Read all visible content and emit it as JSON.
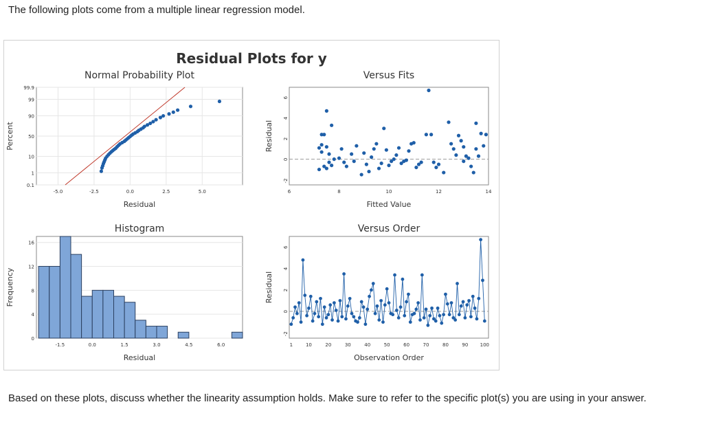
{
  "question": {
    "intro": "The following plots come from a multiple linear regression model.",
    "prompt": "Based on these plots, discuss whether the linearity assumption holds. Make sure to refer to the specific plot(s) you are using in your answer."
  },
  "figure": {
    "title": "Residual Plots for y"
  },
  "colors": {
    "points": "#1f5fa8",
    "bars": "#7fa6d8",
    "fit_line": "#c0392b",
    "reference_line": "#9a9a9a",
    "grid": "#e6e6e6"
  },
  "chart_data": [
    {
      "type": "scatter",
      "title": "Normal Probability Plot",
      "xlabel": "Residual",
      "ylabel": "Percent",
      "xlim": [
        -6.5,
        7.8
      ],
      "x_ticks": [
        "-5.0",
        "-2.5",
        "0.0",
        "2.5",
        "5.0"
      ],
      "x_tick_values": [
        -5,
        -2.5,
        0,
        2.5,
        5
      ],
      "y_ticks": [
        "0.1",
        "1",
        "10",
        "50",
        "90",
        "99",
        "99.9"
      ],
      "y_tick_values": [
        0.1,
        1,
        10,
        50,
        90,
        99,
        99.9
      ],
      "grid": true,
      "fit_line": {
        "from": [
          -4.5,
          0.1
        ],
        "to": [
          3.8,
          99.9
        ]
      },
      "points": [
        [
          -2.0,
          1.3
        ],
        [
          -1.95,
          2.2
        ],
        [
          -1.9,
          3.0
        ],
        [
          -1.85,
          4.1
        ],
        [
          -1.8,
          5.2
        ],
        [
          -1.75,
          6.5
        ],
        [
          -1.7,
          8.0
        ],
        [
          -1.6,
          10
        ],
        [
          -1.5,
          12
        ],
        [
          -1.4,
          14
        ],
        [
          -1.3,
          16
        ],
        [
          -1.2,
          18
        ],
        [
          -1.1,
          20
        ],
        [
          -1.0,
          22
        ],
        [
          -0.9,
          25
        ],
        [
          -0.8,
          28
        ],
        [
          -0.7,
          31
        ],
        [
          -0.55,
          34
        ],
        [
          -0.4,
          37
        ],
        [
          -0.3,
          40
        ],
        [
          -0.2,
          43
        ],
        [
          -0.1,
          46
        ],
        [
          0.0,
          49
        ],
        [
          0.1,
          52
        ],
        [
          0.2,
          55
        ],
        [
          0.35,
          58
        ],
        [
          0.5,
          61
        ],
        [
          0.6,
          64
        ],
        [
          0.75,
          67
        ],
        [
          0.9,
          70
        ],
        [
          1.0,
          73
        ],
        [
          1.2,
          76
        ],
        [
          1.4,
          79
        ],
        [
          1.6,
          82
        ],
        [
          1.8,
          85
        ],
        [
          2.1,
          88
        ],
        [
          2.3,
          90
        ],
        [
          2.7,
          92
        ],
        [
          3.0,
          93.5
        ],
        [
          3.3,
          95
        ],
        [
          4.2,
          97
        ],
        [
          6.2,
          98.6
        ]
      ]
    },
    {
      "type": "scatter",
      "title": "Versus Fits",
      "xlabel": "Fitted Value",
      "ylabel": "Residual",
      "xlim": [
        6,
        14
      ],
      "ylim": [
        -2.5,
        7
      ],
      "x_ticks": [
        "6",
        "8",
        "10",
        "12",
        "14"
      ],
      "x_tick_values": [
        6,
        8,
        10,
        12,
        14
      ],
      "y_ticks": [
        "-2",
        "0",
        "2",
        "4",
        "6"
      ],
      "y_tick_values": [
        -2,
        0,
        2,
        4,
        6
      ],
      "grid": false,
      "reference_line_y": 0,
      "points": [
        [
          7.5,
          4.7
        ],
        [
          7.7,
          3.3
        ],
        [
          7.3,
          2.4
        ],
        [
          7.4,
          2.4
        ],
        [
          7.3,
          1.4
        ],
        [
          7.2,
          1.1
        ],
        [
          7.5,
          1.2
        ],
        [
          7.3,
          0.7
        ],
        [
          7.6,
          0.5
        ],
        [
          7.7,
          -0.6
        ],
        [
          7.4,
          -0.7
        ],
        [
          7.5,
          -0.9
        ],
        [
          7.2,
          -1.0
        ],
        [
          7.6,
          -0.3
        ],
        [
          7.8,
          0.0
        ],
        [
          8.0,
          0.1
        ],
        [
          8.1,
          1.0
        ],
        [
          8.2,
          -0.3
        ],
        [
          8.3,
          -0.7
        ],
        [
          8.5,
          0.5
        ],
        [
          8.6,
          -0.2
        ],
        [
          8.7,
          1.3
        ],
        [
          8.9,
          -1.5
        ],
        [
          9.0,
          0.6
        ],
        [
          9.1,
          -0.5
        ],
        [
          9.2,
          -1.2
        ],
        [
          9.3,
          0.2
        ],
        [
          9.4,
          1.0
        ],
        [
          9.5,
          1.5
        ],
        [
          9.6,
          -0.9
        ],
        [
          9.7,
          -0.4
        ],
        [
          9.8,
          3.0
        ],
        [
          9.9,
          0.9
        ],
        [
          10.0,
          -0.6
        ],
        [
          10.1,
          -0.2
        ],
        [
          10.2,
          0.0
        ],
        [
          10.3,
          0.4
        ],
        [
          10.4,
          1.1
        ],
        [
          10.5,
          -0.4
        ],
        [
          10.6,
          -0.2
        ],
        [
          10.7,
          -0.1
        ],
        [
          10.8,
          0.8
        ],
        [
          10.9,
          1.5
        ],
        [
          11.0,
          1.6
        ],
        [
          11.1,
          -0.8
        ],
        [
          11.2,
          -0.5
        ],
        [
          11.3,
          -0.3
        ],
        [
          11.5,
          2.4
        ],
        [
          11.6,
          6.7
        ],
        [
          11.7,
          2.4
        ],
        [
          11.8,
          -0.3
        ],
        [
          11.9,
          -0.8
        ],
        [
          12.0,
          -0.5
        ],
        [
          12.2,
          -1.3
        ],
        [
          12.4,
          3.6
        ],
        [
          12.5,
          1.5
        ],
        [
          12.6,
          1.0
        ],
        [
          12.7,
          0.4
        ],
        [
          12.8,
          2.3
        ],
        [
          12.9,
          1.8
        ],
        [
          13.0,
          1.2
        ],
        [
          13.0,
          -0.2
        ],
        [
          13.1,
          0.3
        ],
        [
          13.2,
          0.1
        ],
        [
          13.3,
          -0.7
        ],
        [
          13.4,
          -1.3
        ],
        [
          13.5,
          1.0
        ],
        [
          13.6,
          0.3
        ],
        [
          13.7,
          2.5
        ],
        [
          13.8,
          1.3
        ],
        [
          13.9,
          2.4
        ],
        [
          13.5,
          3.5
        ]
      ]
    },
    {
      "type": "bar",
      "title": "Histogram",
      "xlabel": "Residual",
      "ylabel": "Frequency",
      "xlim": [
        -2.6,
        7.0
      ],
      "ylim": [
        0,
        17
      ],
      "x_ticks": [
        "-1.5",
        "0.0",
        "1.5",
        "3.0",
        "4.5",
        "6.0"
      ],
      "x_tick_values": [
        -1.5,
        0.0,
        1.5,
        3.0,
        4.5,
        6.0
      ],
      "y_ticks": [
        "0",
        "4",
        "8",
        "12",
        "16"
      ],
      "y_tick_values": [
        0,
        4,
        8,
        12,
        16
      ],
      "bin_start": -2.5,
      "bin_width": 0.5,
      "values": [
        12,
        12,
        17,
        14,
        7,
        8,
        8,
        7,
        6,
        3,
        2,
        2,
        0,
        1,
        0,
        0,
        0,
        0,
        1
      ],
      "grid": true
    },
    {
      "type": "line",
      "title": "Versus Order",
      "xlabel": "Observation Order",
      "ylabel": "Residual",
      "xlim": [
        0,
        102
      ],
      "ylim": [
        -2.5,
        7
      ],
      "x_ticks": [
        "1",
        "10",
        "20",
        "30",
        "40",
        "50",
        "60",
        "70",
        "80",
        "90",
        "100"
      ],
      "x_tick_values": [
        1,
        10,
        20,
        30,
        40,
        50,
        60,
        70,
        80,
        90,
        100
      ],
      "y_ticks": [
        "-2",
        "0",
        "2",
        "4",
        "6"
      ],
      "y_tick_values": [
        -2,
        0,
        2,
        4,
        6
      ],
      "grid": false,
      "reference_line_y": 0,
      "values": [
        -1.2,
        -0.6,
        0.4,
        -0.2,
        0.8,
        -1.0,
        4.8,
        1.5,
        -0.4,
        0.3,
        1.4,
        -0.9,
        -0.2,
        0.9,
        -0.5,
        1.2,
        -1.2,
        0.4,
        -0.6,
        -0.3,
        0.6,
        -0.8,
        0.8,
        0.1,
        -0.9,
        1.0,
        -0.5,
        3.5,
        -0.7,
        0.5,
        1.2,
        -0.2,
        -0.5,
        -0.9,
        -1.0,
        -0.6,
        0.9,
        0.4,
        -1.2,
        0.2,
        1.4,
        2.0,
        2.6,
        -0.2,
        0.5,
        -0.8,
        1.0,
        -1.0,
        0.6,
        2.1,
        0.8,
        -0.2,
        -0.3,
        3.4,
        0.1,
        -0.6,
        0.4,
        3.0,
        -0.4,
        0.9,
        1.6,
        -1.0,
        -0.3,
        -0.2,
        0.2,
        0.8,
        -0.8,
        3.4,
        -0.6,
        0.2,
        -1.3,
        -0.4,
        0.3,
        -0.7,
        -0.9,
        0.3,
        -0.4,
        -1.1,
        -0.3,
        1.6,
        0.7,
        -0.3,
        0.8,
        -0.6,
        -0.8,
        2.6,
        -0.3,
        0.5,
        0.9,
        -0.6,
        0.6,
        1.0,
        -0.5,
        1.4,
        0.3,
        -0.7,
        1.2,
        6.7,
        2.9,
        -0.9
      ]
    }
  ]
}
